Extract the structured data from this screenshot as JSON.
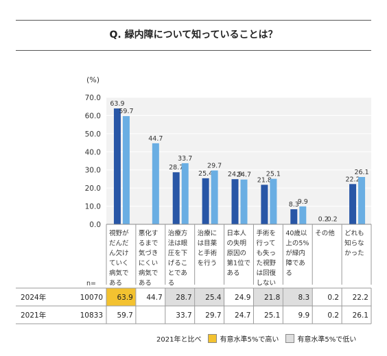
{
  "title": "Q. 緑内障について知っていることは？",
  "chart_data": {
    "type": "bar",
    "title": "Q. 緑内障について知っていることは？",
    "ylabel": "(%)",
    "ylim": [
      0,
      70
    ],
    "yticks": [
      "0.0",
      "10.0",
      "20.0",
      "30.0",
      "40.0",
      "50.0",
      "60.0",
      "70.0"
    ],
    "grid": true,
    "categories": [
      "視野がだんだん欠けていく病気である",
      "悪化するまで気づきにくい病気である",
      "治療方法は眼圧を下げることである",
      "治療には目薬と手術を行う",
      "日本人の失明原因の第1位である",
      "手術を行っても失った視野は回復しない",
      "40歳以上の5%が緑内障である",
      "その他",
      "どれも知らなかった"
    ],
    "category_lines": [
      [
        "視野が",
        "だんだ",
        "ん欠け",
        "ていく",
        "病気で",
        "ある"
      ],
      [
        "悪化す",
        "るまで",
        "気づき",
        "にくい",
        "病気で",
        "ある"
      ],
      [
        "治療方",
        "法は眼",
        "圧を下",
        "げるこ",
        "とであ",
        "る"
      ],
      [
        "治療に",
        "は目薬",
        "と手術",
        "を行う"
      ],
      [
        "日本人",
        "の失明",
        "原因の",
        "第1位で",
        "ある"
      ],
      [
        "手術を",
        "行って",
        "も失っ",
        "た視野",
        "は回復",
        "しない"
      ],
      [
        "40歳以",
        "上の5%",
        "が緑内",
        "障であ",
        "る"
      ],
      [
        "その他"
      ],
      [
        "どれも",
        "知らな",
        "かった"
      ]
    ],
    "series": [
      {
        "name": "2024年",
        "n": "10070",
        "color": "#2856a6",
        "values": [
          63.9,
          null,
          28.7,
          25.4,
          24.9,
          21.8,
          8.3,
          0.2,
          22.2
        ],
        "table_values": [
          "63.9",
          "44.7",
          "28.7",
          "25.4",
          "24.9",
          "21.8",
          "8.3",
          "0.2",
          "22.2"
        ],
        "significance": [
          "high",
          "",
          "low",
          "low",
          "",
          "low",
          "low",
          "",
          ""
        ]
      },
      {
        "name": "2021年",
        "n": "10833",
        "color": "#6aaee3",
        "values": [
          59.7,
          44.7,
          33.7,
          29.7,
          24.7,
          25.1,
          9.9,
          0.2,
          26.1
        ],
        "table_values": [
          "59.7",
          "",
          "33.7",
          "29.7",
          "24.7",
          "25.1",
          "9.9",
          "0.2",
          "26.1"
        ],
        "significance": [
          "",
          "",
          "",
          "",
          "",
          "",
          "",
          "",
          ""
        ]
      }
    ],
    "n_label": "n="
  },
  "legend": {
    "compare": "2021年と比べ",
    "high": "有意水準5%で高い",
    "low": "有意水準5%で低い",
    "high_color": "#f3c230",
    "low_color": "#dedede"
  }
}
